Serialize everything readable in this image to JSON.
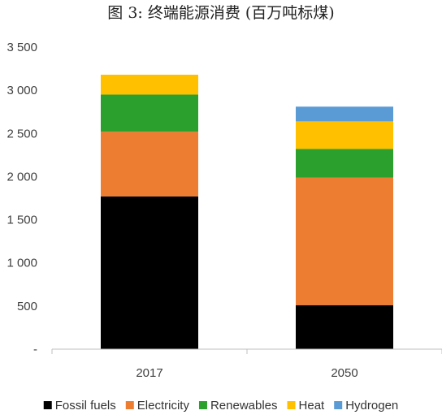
{
  "chart_data": {
    "type": "bar",
    "stacked": true,
    "title": "图 3: 终端能源消费 (百万吨标煤)",
    "categories": [
      "2017",
      "2050"
    ],
    "series": [
      {
        "name": "Fossil fuels",
        "color": "#000000",
        "values": [
          1770,
          510
        ]
      },
      {
        "name": "Electricity",
        "color": "#ED7D31",
        "values": [
          750,
          1480
        ]
      },
      {
        "name": "Renewables",
        "color": "#2CA02C",
        "values": [
          430,
          330
        ]
      },
      {
        "name": "Heat",
        "color": "#FFC000",
        "values": [
          230,
          320
        ]
      },
      {
        "name": "Hydrogen",
        "color": "#5B9BD5",
        "values": [
          0,
          170
        ]
      }
    ],
    "y_ticks": [
      {
        "value": 0,
        "label": "-"
      },
      {
        "value": 500,
        "label": "500"
      },
      {
        "value": 1000,
        "label": "1 000"
      },
      {
        "value": 1500,
        "label": "1 500"
      },
      {
        "value": 2000,
        "label": "2 000"
      },
      {
        "value": 2500,
        "label": "2 500"
      },
      {
        "value": 3000,
        "label": "3 000"
      },
      {
        "value": 3500,
        "label": "3 500"
      }
    ],
    "ylim": [
      0,
      3500
    ],
    "xlabel": "",
    "ylabel": "",
    "grid": false,
    "legend_position": "bottom"
  }
}
